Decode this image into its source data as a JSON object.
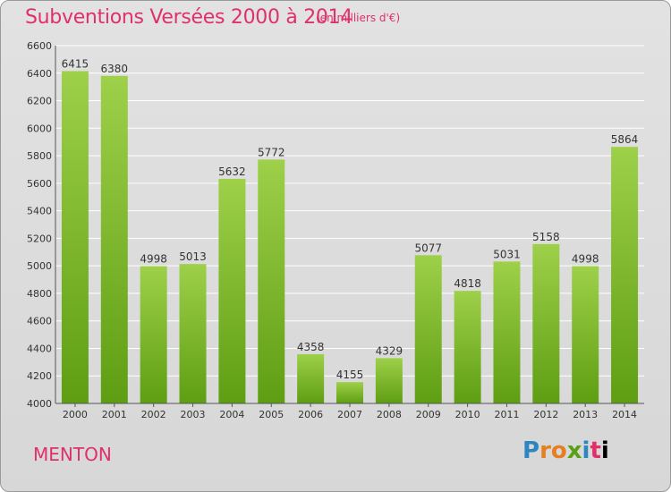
{
  "header": {
    "title": "Subventions Versées 2000 à 2014",
    "subtitle": "(en milliers d'€)"
  },
  "footer": {
    "city": "MENTON",
    "logo": "Proxiti"
  },
  "colors": {
    "accent": "#e0306c",
    "bar_top": "#9ed04a",
    "bar_bottom": "#5e9e12",
    "grid": "#ffffff"
  },
  "chart_data": {
    "type": "bar",
    "title": "Subventions Versées 2000 à 2014",
    "subtitle": "(en milliers d'€)",
    "xlabel": "",
    "ylabel": "",
    "categories": [
      "2000",
      "2001",
      "2002",
      "2003",
      "2004",
      "2005",
      "2006",
      "2007",
      "2008",
      "2009",
      "2010",
      "2011",
      "2012",
      "2013",
      "2014"
    ],
    "values": [
      6415,
      6380,
      4998,
      5013,
      5632,
      5772,
      4358,
      4155,
      4329,
      5077,
      4818,
      5031,
      5158,
      4998,
      5864
    ],
    "ylim": [
      4000,
      6600
    ],
    "yticks": [
      4000,
      4200,
      4400,
      4600,
      4800,
      5000,
      5200,
      5400,
      5600,
      5800,
      6000,
      6200,
      6400,
      6600
    ],
    "grid": true,
    "legend": "none"
  }
}
